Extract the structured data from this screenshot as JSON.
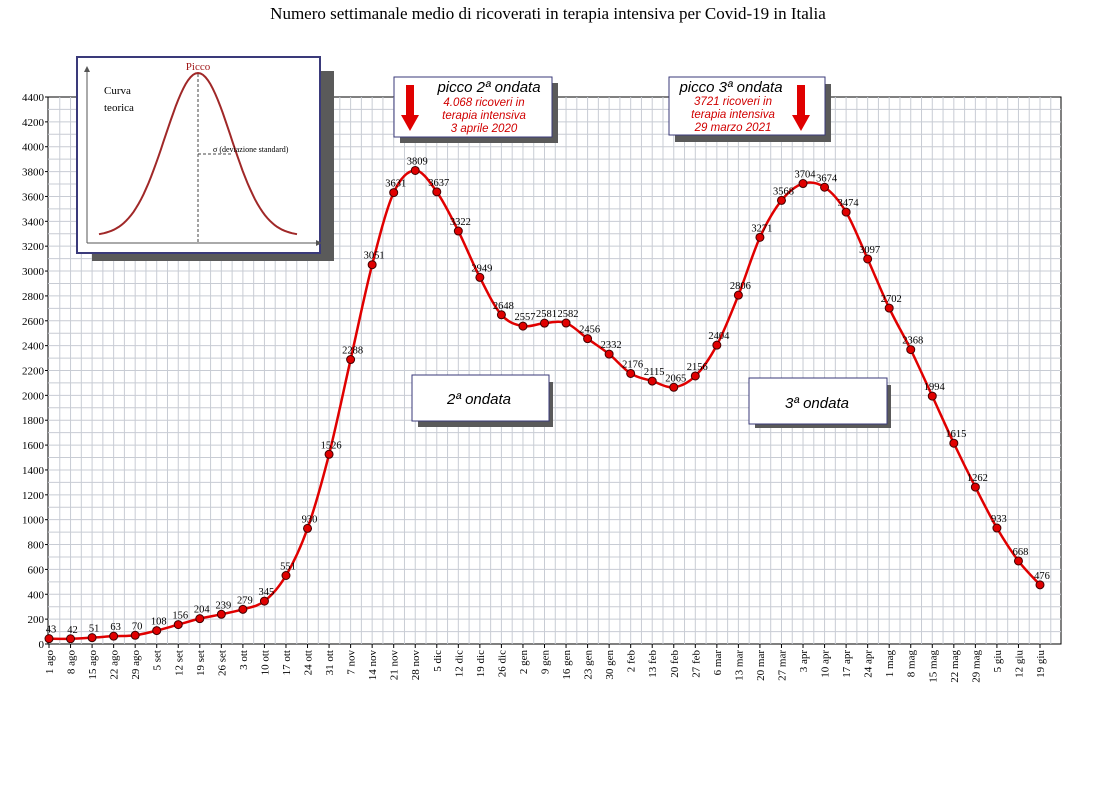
{
  "chart_data": {
    "type": "line",
    "title": "Numero settimanale medio di ricoverati in terapia intensiva per Covid-19 in Italia",
    "xlabel": "",
    "ylabel": "",
    "ylim": [
      0,
      4400
    ],
    "yticks": [
      0,
      200,
      400,
      600,
      800,
      1000,
      1200,
      1400,
      1600,
      1800,
      2000,
      2200,
      2400,
      2600,
      2800,
      3000,
      3200,
      3400,
      3600,
      3800,
      4000,
      4200,
      4400
    ],
    "grid": true,
    "line_color": "#e00000",
    "marker_color": "#e00000",
    "categories": [
      "1 ago",
      "8 ago",
      "15 ago",
      "22 ago",
      "29 ago",
      "5 set",
      "12 set",
      "19 set",
      "26 set",
      "3 ott",
      "10 ott",
      "17 ott",
      "24 ott",
      "31 ott",
      "7 nov",
      "14 nov",
      "21 nov",
      "28 nov",
      "5 dic",
      "12 dic",
      "19 dic",
      "26 dic",
      "2 gen",
      "9 gen",
      "16 gen",
      "23 gen",
      "30 gen",
      "2 feb",
      "13 feb",
      "20 feb",
      "27 feb",
      "6 mar",
      "13 mar",
      "20 mar",
      "27 mar",
      "3 apr",
      "10 apr",
      "17 apr",
      "24 apr",
      "1 mag",
      "8 mag",
      "15 mag",
      "22 mag",
      "29 mag",
      "5 giu",
      "12 giu",
      "19 giu"
    ],
    "values": [
      43,
      42,
      51,
      63,
      70,
      108,
      156,
      204,
      239,
      279,
      345,
      551,
      930,
      1526,
      2288,
      3051,
      3631,
      3809,
      3637,
      3322,
      2949,
      2648,
      2557,
      2581,
      2582,
      2456,
      2332,
      2176,
      2115,
      2065,
      2156,
      2404,
      2806,
      3271,
      3568,
      3704,
      3674,
      3474,
      3097,
      2702,
      2368,
      1994,
      1615,
      1262,
      933,
      668,
      476
    ],
    "value_labels": [
      "43",
      "42",
      "51",
      "63",
      "70",
      "108",
      "156",
      "204",
      "239",
      "279",
      "345",
      "551",
      "930",
      "1526",
      "2288",
      "3051",
      "3631",
      "3809",
      "3637",
      "3322",
      "2949",
      "2648",
      "2557",
      "2581",
      "2582",
      "2456",
      "2332",
      "2176",
      "2115",
      "2065",
      "2156",
      "2404",
      "2806",
      "3271",
      "3568",
      "3704",
      "3674",
      "3474",
      "3097",
      "2702",
      "2368",
      "1994",
      "1615",
      "1262",
      "933",
      "668",
      "476"
    ]
  },
  "annotations": {
    "peak2": {
      "title": "picco 2ª ondata",
      "line1": "4.068 ricoveri in",
      "line2": "terapia intensiva",
      "line3": "3 aprile 2020",
      "arrow_color": "#e00000"
    },
    "peak3": {
      "title": "picco 3ª ondata",
      "line1": "3721 ricoveri in",
      "line2": "terapia intensiva",
      "line3": "29 marzo 2021",
      "arrow_color": "#e00000"
    },
    "wave2": "2ª ondata",
    "wave3": "3ª ondata"
  },
  "inset": {
    "label_line1": "Curva",
    "label_line2": "teorica",
    "peak_label": "Picco",
    "sigma_label": "σ  (deviazione standard)",
    "curve_color": "#a02828"
  }
}
